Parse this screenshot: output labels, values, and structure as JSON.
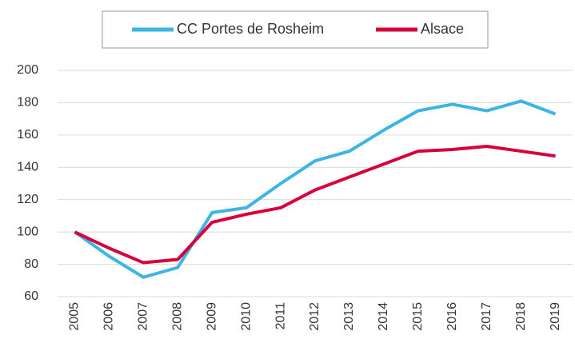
{
  "chart_data": {
    "type": "line",
    "categories": [
      "2005",
      "2006",
      "2007",
      "2008",
      "2009",
      "2010",
      "2011",
      "2012",
      "2013",
      "2014",
      "2015",
      "2016",
      "2017",
      "2018",
      "2019"
    ],
    "series": [
      {
        "name": "CC Portes de Rosheim",
        "color": "#3cb4e5",
        "values": [
          100,
          85,
          72,
          78,
          112,
          115,
          130,
          144,
          150,
          163,
          175,
          179,
          175,
          181,
          173
        ]
      },
      {
        "name": "Alsace",
        "color": "#d6003c",
        "values": [
          100,
          90,
          81,
          83,
          106,
          111,
          115,
          126,
          134,
          142,
          150,
          151,
          153,
          150,
          147
        ]
      }
    ],
    "ylim": [
      60,
      200
    ],
    "yticks": [
      60,
      80,
      100,
      120,
      140,
      160,
      180,
      200
    ],
    "grid": true,
    "legend": "top"
  }
}
